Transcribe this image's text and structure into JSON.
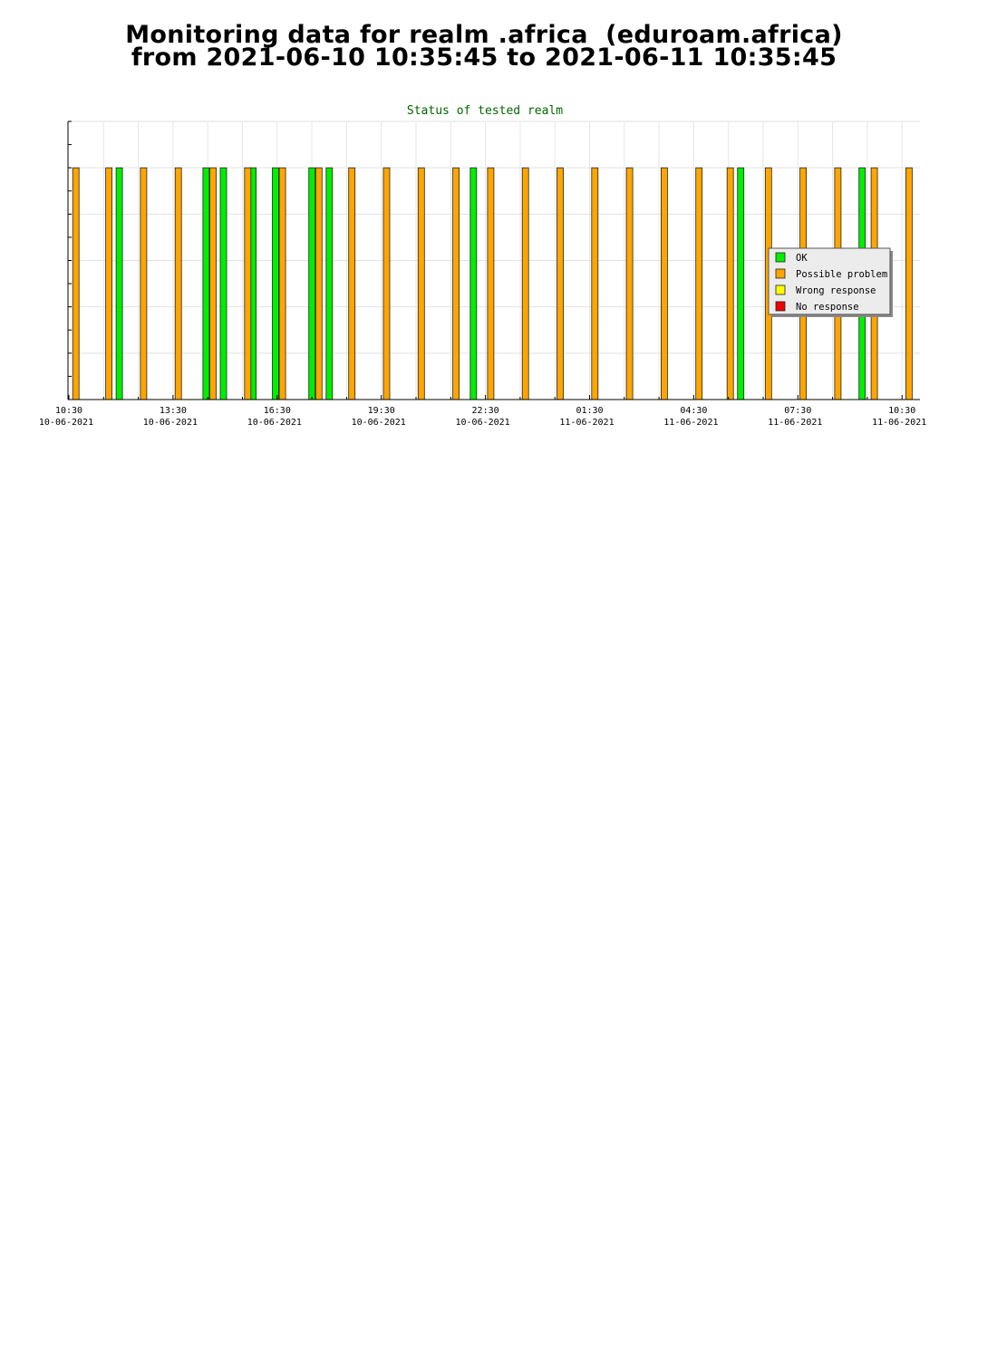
{
  "page": {
    "title_line1": "Monitoring data for realm .africa  (eduroam.africa)",
    "title_line2": "from 2021-06-10 10:35:45 to 2021-06-11 10:35:45"
  },
  "chart_data": {
    "type": "bar",
    "title": "Status of tested realm",
    "xlabel": "",
    "ylabel": "",
    "x_unit": "hours since 2021-06-10 10:30",
    "xlim": [
      0,
      24.5
    ],
    "ylim": [
      0,
      1.2
    ],
    "grid": true,
    "legend_position": "right",
    "colors": {
      "OK": "#00ee00",
      "Possible problem": "#ffa500",
      "Wrong response": "#ffff00",
      "No response": "#ee0000",
      "title": "#006600"
    },
    "legend": [
      "OK",
      "Possible problem",
      "Wrong response",
      "No response"
    ],
    "ticks": [
      {
        "time": "10:30",
        "date": "10-06-2021"
      },
      {
        "time": "13:30",
        "date": "10-06-2021"
      },
      {
        "time": "16:30",
        "date": "10-06-2021"
      },
      {
        "time": "19:30",
        "date": "10-06-2021"
      },
      {
        "time": "22:30",
        "date": "10-06-2021"
      },
      {
        "time": "01:30",
        "date": "11-06-2021"
      },
      {
        "time": "04:30",
        "date": "11-06-2021"
      },
      {
        "time": "07:30",
        "date": "11-06-2021"
      },
      {
        "time": "10:30",
        "date": "11-06-2021"
      }
    ],
    "series": [
      {
        "name": "OK",
        "values": [
          {
            "x": 1.4,
            "y": 1
          },
          {
            "x": 3.9,
            "y": 1
          },
          {
            "x": 4.4,
            "y": 1
          },
          {
            "x": 5.25,
            "y": 1
          },
          {
            "x": 5.9,
            "y": 1
          },
          {
            "x": 6.95,
            "y": 1
          },
          {
            "x": 7.45,
            "y": 1
          },
          {
            "x": 11.6,
            "y": 1
          },
          {
            "x": 19.3,
            "y": 1
          },
          {
            "x": 22.8,
            "y": 1
          }
        ]
      },
      {
        "name": "Possible problem",
        "values": [
          {
            "x": 0.15,
            "y": 1
          },
          {
            "x": 1.1,
            "y": 1
          },
          {
            "x": 2.1,
            "y": 1
          },
          {
            "x": 3.1,
            "y": 1
          },
          {
            "x": 4.1,
            "y": 1
          },
          {
            "x": 5.1,
            "y": 1
          },
          {
            "x": 6.1,
            "y": 1
          },
          {
            "x": 7.15,
            "y": 1
          },
          {
            "x": 8.1,
            "y": 1
          },
          {
            "x": 9.1,
            "y": 1
          },
          {
            "x": 10.1,
            "y": 1
          },
          {
            "x": 11.1,
            "y": 1
          },
          {
            "x": 12.1,
            "y": 1
          },
          {
            "x": 13.1,
            "y": 1
          },
          {
            "x": 14.1,
            "y": 1
          },
          {
            "x": 15.1,
            "y": 1
          },
          {
            "x": 16.1,
            "y": 1
          },
          {
            "x": 17.1,
            "y": 1
          },
          {
            "x": 18.1,
            "y": 1
          },
          {
            "x": 19.0,
            "y": 1
          },
          {
            "x": 20.1,
            "y": 1
          },
          {
            "x": 21.1,
            "y": 1
          },
          {
            "x": 22.1,
            "y": 1
          },
          {
            "x": 23.15,
            "y": 1
          },
          {
            "x": 24.15,
            "y": 1
          }
        ]
      },
      {
        "name": "Wrong response",
        "values": []
      },
      {
        "name": "No response",
        "values": []
      }
    ]
  }
}
